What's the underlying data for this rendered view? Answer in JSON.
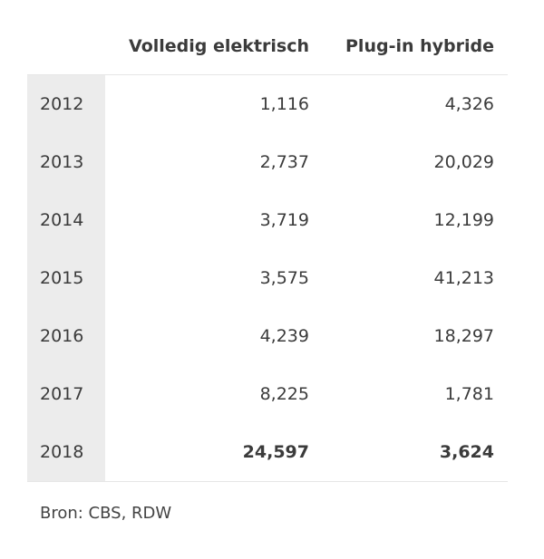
{
  "chart_data": {
    "type": "table",
    "columns": [
      "Volledig elektrisch",
      "Plug-in hybride"
    ],
    "rows": [
      {
        "year": "2012",
        "values": [
          "1,116",
          "4,326"
        ]
      },
      {
        "year": "2013",
        "values": [
          "2,737",
          "20,029"
        ]
      },
      {
        "year": "2014",
        "values": [
          "3,719",
          "12,199"
        ]
      },
      {
        "year": "2015",
        "values": [
          "3,575",
          "41,213"
        ]
      },
      {
        "year": "2016",
        "values": [
          "4,239",
          "18,297"
        ]
      },
      {
        "year": "2017",
        "values": [
          "8,225",
          "1,781"
        ]
      },
      {
        "year": "2018",
        "values": [
          "24,597",
          "3,624"
        ],
        "bold": true
      }
    ],
    "source": "Bron: CBS, RDW"
  }
}
